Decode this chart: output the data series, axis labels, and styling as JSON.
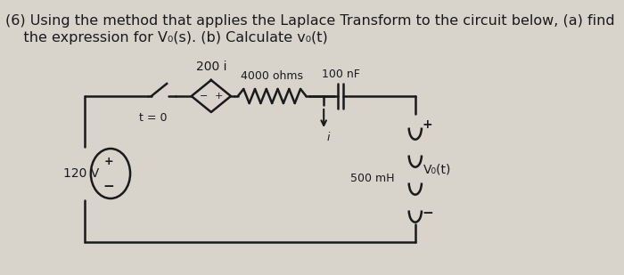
{
  "title_line1": "(6) Using the method that applies the Laplace Transform to the circuit below, (a) find",
  "title_line2": "    the expression for V₀(s). (b) Calculate v₀(t)",
  "bg_color": "#d8d4cc",
  "text_color": "#1a1a1a",
  "title_fontsize": 11.5,
  "label_200i": "200 i",
  "label_4000": "4000 ohms",
  "label_100nF": "100 nF",
  "label_t0": "t = 0",
  "label_120V": "120 V",
  "label_500mH": "500 mH",
  "label_Vo": "V₀(t)",
  "label_I": "i",
  "label_plus_source": "+",
  "label_minus_source": "-",
  "label_plus_right": "+",
  "label_minus_right": "-"
}
